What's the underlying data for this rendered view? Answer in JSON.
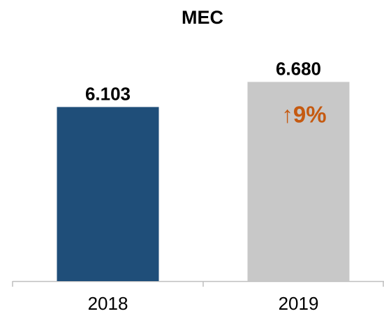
{
  "chart_data": {
    "type": "bar",
    "title": "MEC",
    "categories": [
      "2018",
      "2019"
    ],
    "values": [
      6.103,
      6.68
    ],
    "value_labels": [
      "6.103",
      "6.680"
    ],
    "colors": [
      "#1f4e79",
      "#c8c8c8"
    ],
    "ylim": [
      2.1,
      7.2
    ],
    "annotation": {
      "text": "↑9%",
      "color": "#c55a11"
    }
  }
}
